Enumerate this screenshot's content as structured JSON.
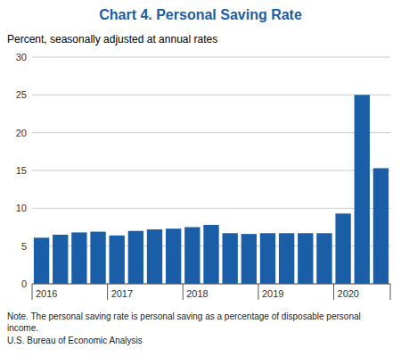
{
  "chart_data": {
    "type": "bar",
    "title": "Chart 4. Personal Saving Rate",
    "subtitle": "Percent, seasonally adjusted at annual rates",
    "notes": [
      "Note. The personal saving rate is personal saving as a percentage of disposable personal income.",
      "U.S. Bureau of Economic Analysis"
    ],
    "categories": [
      "2016",
      null,
      null,
      null,
      "2017",
      null,
      null,
      null,
      "2018",
      null,
      null,
      null,
      "2019",
      null,
      null,
      null,
      "2020",
      null,
      null
    ],
    "values": [
      6.1,
      6.5,
      6.8,
      6.9,
      6.4,
      7.0,
      7.2,
      7.3,
      7.5,
      7.8,
      6.7,
      6.6,
      6.7,
      6.7,
      6.7,
      6.7,
      9.3,
      25.0,
      15.3
    ],
    "color": "#1A5EA8",
    "ylim": [
      0,
      30
    ],
    "yticks": [
      0,
      5,
      10,
      15,
      20,
      25,
      30
    ],
    "grid": true
  }
}
